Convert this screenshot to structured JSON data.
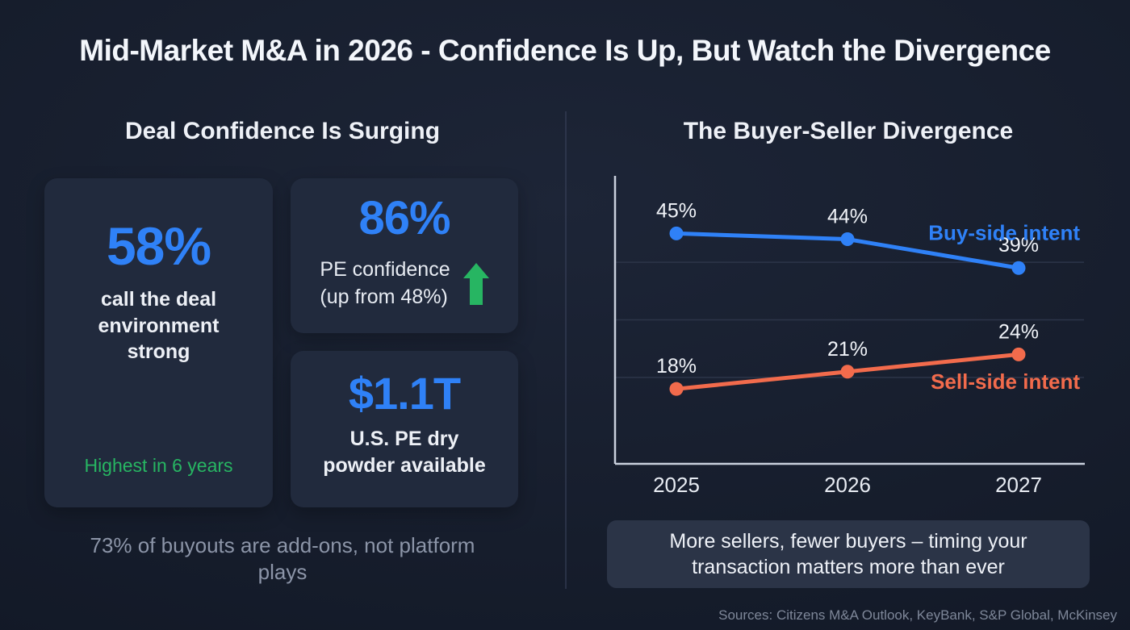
{
  "page": {
    "title": "Mid-Market M&A in 2026 - Confidence Is Up, But Watch the Divergence",
    "sources": "Sources: Citizens M&A Outlook, KeyBank, S&P Global, McKinsey"
  },
  "colors": {
    "accent_blue": "#2f81f7",
    "accent_green": "#27b562",
    "accent_orange": "#f26b4c",
    "card_bg": "#212a3d",
    "callout_bg": "#2b3447"
  },
  "left": {
    "heading": "Deal Confidence Is Surging",
    "stat_main": {
      "value": "58%",
      "label": "call the deal environment strong",
      "footnote": "Highest in 6 years"
    },
    "stat_pe": {
      "value": "86%",
      "label_line1": "PE confidence",
      "label_line2": "(up from 48%)"
    },
    "stat_drypowder": {
      "value": "$1.1T",
      "label": "U.S. PE dry powder available"
    },
    "footnote": "73% of buyouts are add-ons, not platform plays"
  },
  "right": {
    "heading": "The Buyer-Seller Divergence",
    "callout": "More sellers, fewer buyers – timing your transaction matters more than ever"
  },
  "chart_data": {
    "type": "line",
    "title": "The Buyer-Seller Divergence",
    "x": [
      "2025",
      "2026",
      "2027"
    ],
    "series": [
      {
        "name": "Buy-side intent",
        "values": [
          45,
          44,
          39
        ],
        "labels": [
          "45%",
          "44%",
          "39%"
        ],
        "color": "#2f81f7"
      },
      {
        "name": "Sell-side intent",
        "values": [
          18,
          21,
          24
        ],
        "labels": [
          "18%",
          "21%",
          "24%"
        ],
        "color": "#f26b4c"
      }
    ],
    "ylim": [
      5,
      55
    ],
    "gridlines": [
      20,
      30,
      40
    ],
    "grid": true,
    "legend_position": "inline-right",
    "xlabel": "",
    "ylabel": ""
  }
}
